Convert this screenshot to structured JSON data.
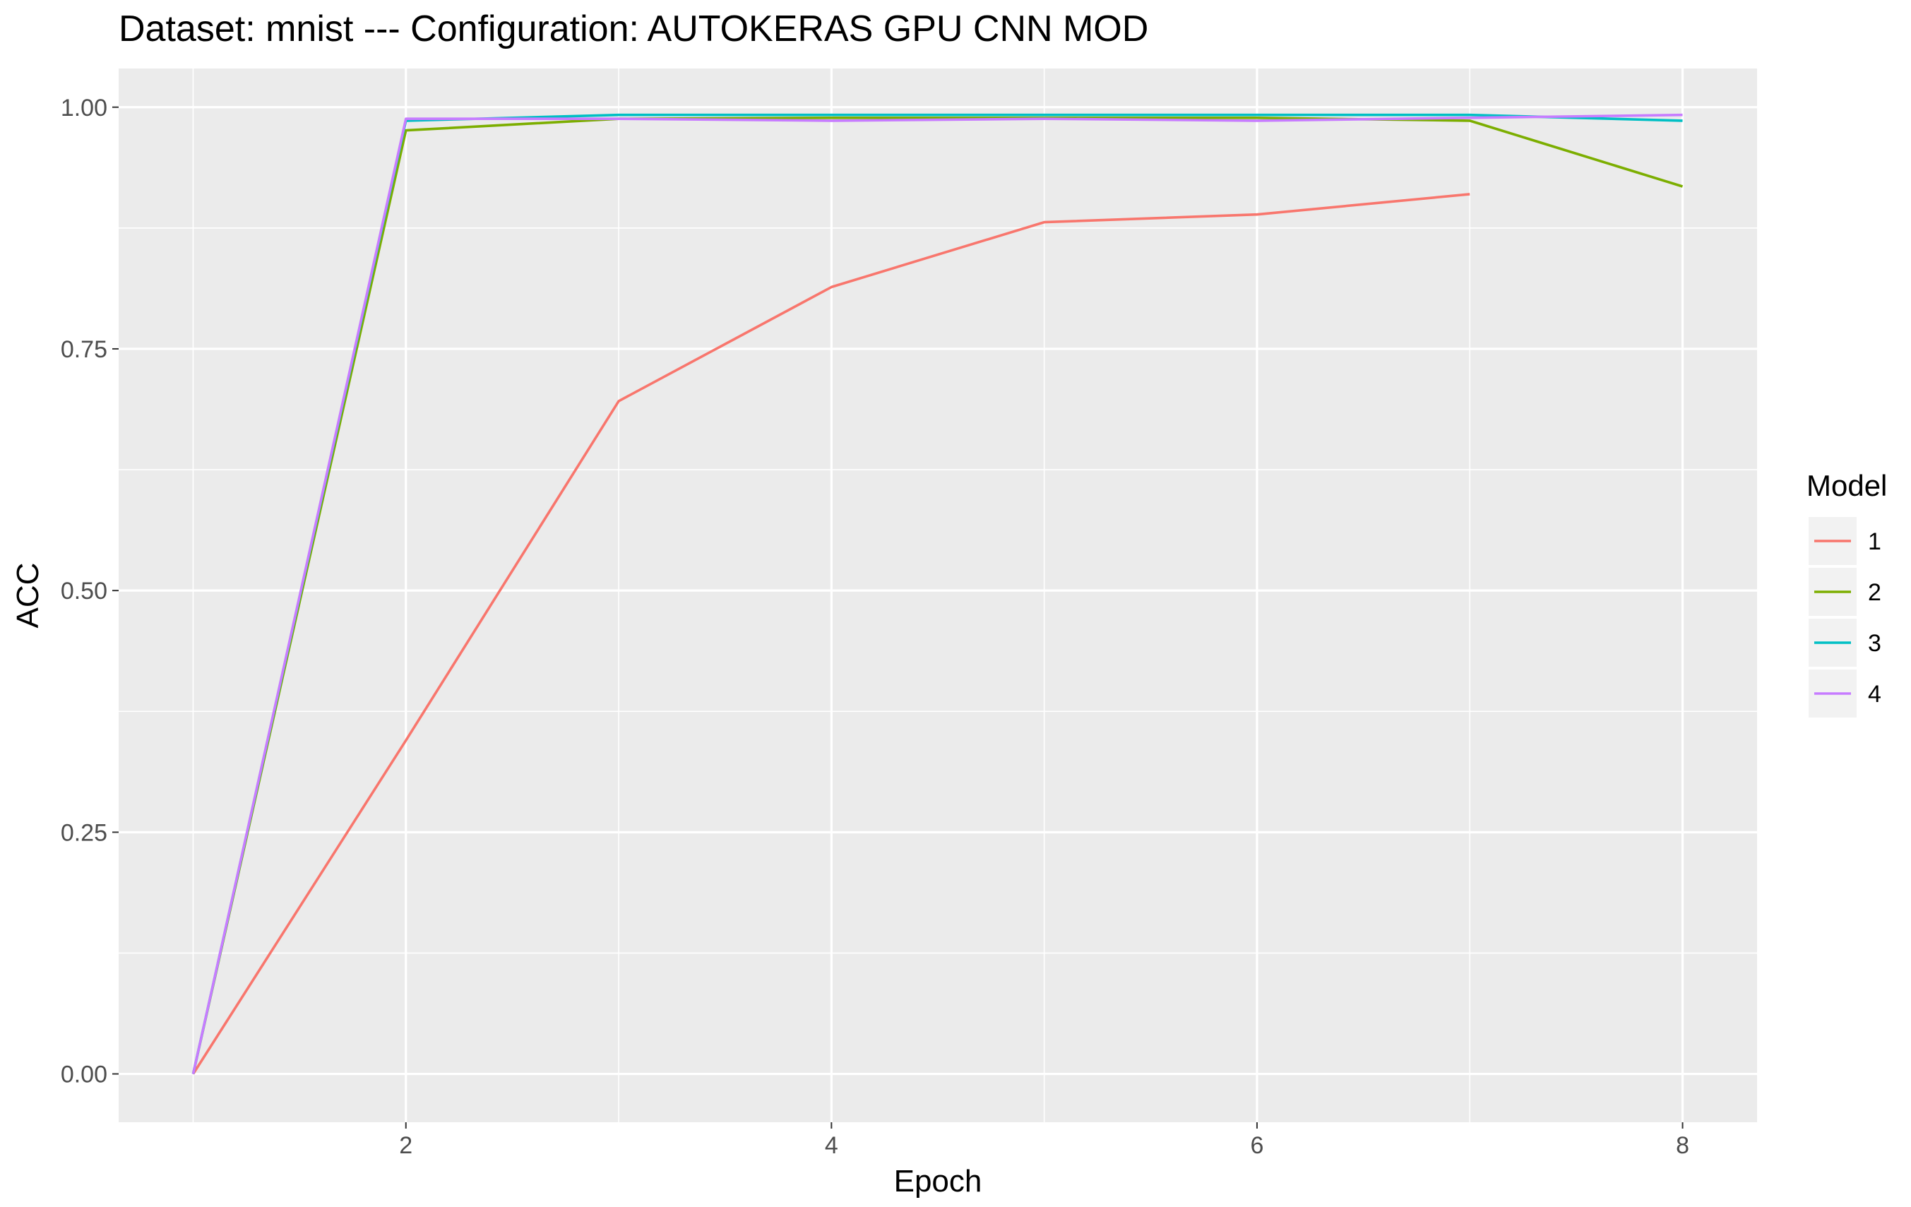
{
  "chart_data": {
    "type": "line",
    "title": "Dataset:  mnist  --- Configuration:  AUTOKERAS GPU CNN MOD",
    "xlabel": "Epoch",
    "ylabel": "ACC",
    "xlim": [
      0.65,
      8.35
    ],
    "ylim": [
      -0.05,
      1.04
    ],
    "x_ticks": [
      2,
      4,
      6,
      8
    ],
    "x_tick_labels": [
      "2",
      "4",
      "6",
      "8"
    ],
    "y_ticks": [
      0,
      0.25,
      0.5,
      0.75,
      1.0
    ],
    "y_tick_labels": [
      "0.00",
      "0.25",
      "0.50",
      "0.75",
      "1.00"
    ],
    "grid": true,
    "legend": {
      "title": "Model",
      "position": "right"
    },
    "series": [
      {
        "name": "1",
        "color": "#F8766D",
        "x": [
          1,
          2,
          3,
          4,
          5,
          6,
          7
        ],
        "y": [
          0.0,
          0.345,
          0.696,
          0.814,
          0.881,
          0.889,
          0.91
        ]
      },
      {
        "name": "2",
        "color": "#7CAE00",
        "x": [
          1,
          2,
          3,
          4,
          5,
          6,
          7,
          8
        ],
        "y": [
          0.0,
          0.976,
          0.988,
          0.989,
          0.989,
          0.989,
          0.986,
          0.918
        ]
      },
      {
        "name": "3",
        "color": "#00BFC4",
        "x": [
          1,
          2,
          3,
          4,
          5,
          6,
          7,
          8
        ],
        "y": [
          0.0,
          0.986,
          0.992,
          0.992,
          0.992,
          0.992,
          0.992,
          0.986
        ]
      },
      {
        "name": "4",
        "color": "#C77CFF",
        "x": [
          1,
          2,
          3,
          4,
          5,
          6,
          7,
          8
        ],
        "y": [
          0.0,
          0.988,
          0.988,
          0.986,
          0.988,
          0.986,
          0.989,
          0.992
        ]
      }
    ]
  }
}
